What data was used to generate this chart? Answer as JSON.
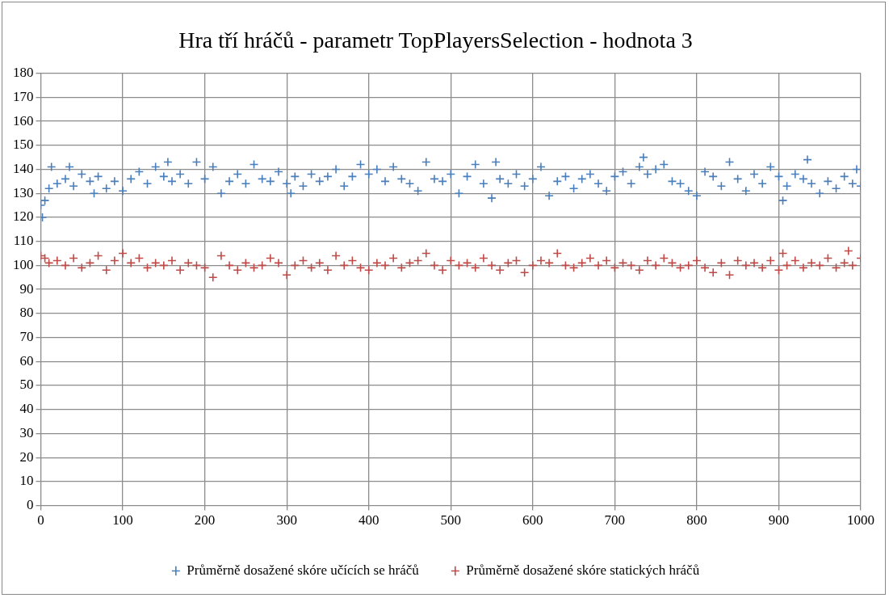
{
  "chart_data": {
    "type": "scatter",
    "title": "Hra tří hráčů - parametr TopPlayersSelection - hodnota 3",
    "xlim": [
      0,
      1000
    ],
    "xticks": [
      0,
      100,
      200,
      300,
      400,
      500,
      600,
      700,
      800,
      900,
      1000
    ],
    "ylim": [
      0,
      180
    ],
    "yticks": [
      0,
      10,
      20,
      30,
      40,
      50,
      60,
      70,
      80,
      90,
      100,
      110,
      120,
      130,
      140,
      150,
      160,
      170,
      180
    ],
    "grid": true,
    "legend": "bottom",
    "marker": "cross",
    "series": [
      {
        "name": "Průměrně dosažené skóre učících se hráčů",
        "color": "#4a7ebb",
        "x": [
          0,
          2,
          5,
          10,
          13,
          20,
          30,
          35,
          40,
          50,
          60,
          65,
          70,
          80,
          90,
          100,
          110,
          120,
          130,
          140,
          150,
          155,
          160,
          170,
          180,
          190,
          200,
          210,
          220,
          230,
          240,
          250,
          260,
          270,
          280,
          290,
          300,
          305,
          310,
          320,
          330,
          340,
          350,
          360,
          370,
          380,
          390,
          400,
          410,
          420,
          430,
          440,
          450,
          460,
          470,
          480,
          490,
          500,
          510,
          520,
          530,
          540,
          550,
          555,
          560,
          570,
          580,
          590,
          600,
          610,
          620,
          630,
          640,
          650,
          660,
          670,
          680,
          690,
          700,
          710,
          720,
          730,
          735,
          740,
          750,
          760,
          770,
          780,
          790,
          800,
          810,
          820,
          830,
          840,
          850,
          860,
          870,
          880,
          890,
          900,
          905,
          910,
          920,
          930,
          935,
          940,
          950,
          960,
          970,
          980,
          990,
          995,
          1000
        ],
        "values": [
          125,
          120,
          127,
          132,
          141,
          134,
          136,
          141,
          133,
          138,
          135,
          130,
          137,
          132,
          135,
          131,
          136,
          139,
          134,
          141,
          137,
          143,
          135,
          138,
          134,
          143,
          136,
          141,
          130,
          135,
          138,
          134,
          142,
          136,
          135,
          139,
          134,
          130,
          137,
          133,
          138,
          135,
          137,
          140,
          133,
          137,
          142,
          138,
          140,
          135,
          141,
          136,
          134,
          131,
          143,
          136,
          135,
          138,
          130,
          137,
          142,
          134,
          128,
          143,
          136,
          134,
          138,
          133,
          136,
          141,
          129,
          135,
          137,
          132,
          136,
          138,
          134,
          131,
          137,
          139,
          134,
          141,
          145,
          138,
          140,
          142,
          135,
          134,
          131,
          129,
          139,
          137,
          133,
          143,
          136,
          131,
          138,
          134,
          141,
          137,
          127,
          133,
          138,
          136,
          144,
          134,
          130,
          135,
          132,
          137,
          134,
          140,
          133
        ]
      },
      {
        "name": "Průměrně dosažené skóre statických hráčů",
        "color": "#be4b48",
        "x": [
          0,
          5,
          10,
          20,
          30,
          40,
          50,
          60,
          70,
          80,
          90,
          100,
          110,
          120,
          130,
          140,
          150,
          160,
          170,
          180,
          190,
          200,
          210,
          220,
          230,
          240,
          250,
          260,
          270,
          280,
          290,
          300,
          310,
          320,
          330,
          340,
          350,
          360,
          370,
          380,
          390,
          400,
          410,
          420,
          430,
          440,
          450,
          460,
          470,
          480,
          490,
          500,
          510,
          520,
          530,
          540,
          550,
          560,
          570,
          580,
          590,
          600,
          610,
          620,
          630,
          640,
          650,
          660,
          670,
          680,
          690,
          700,
          710,
          720,
          730,
          740,
          750,
          760,
          770,
          780,
          790,
          800,
          810,
          820,
          830,
          840,
          850,
          860,
          870,
          880,
          890,
          900,
          905,
          910,
          920,
          930,
          940,
          950,
          960,
          970,
          980,
          985,
          990,
          1000
        ],
        "values": [
          104,
          103,
          101,
          102,
          100,
          103,
          99,
          101,
          104,
          98,
          102,
          105,
          101,
          103,
          99,
          101,
          100,
          102,
          98,
          101,
          100,
          99,
          95,
          104,
          100,
          98,
          101,
          99,
          100,
          103,
          101,
          96,
          100,
          102,
          99,
          101,
          98,
          104,
          100,
          102,
          99,
          98,
          101,
          100,
          103,
          99,
          101,
          102,
          105,
          100,
          98,
          102,
          100,
          101,
          99,
          103,
          100,
          98,
          101,
          102,
          97,
          100,
          102,
          101,
          105,
          100,
          99,
          101,
          103,
          100,
          102,
          99,
          101,
          100,
          98,
          102,
          100,
          103,
          101,
          99,
          100,
          102,
          99,
          97,
          101,
          96,
          102,
          100,
          101,
          99,
          102,
          98,
          105,
          100,
          102,
          99,
          101,
          100,
          103,
          99,
          101,
          106,
          100,
          103
        ]
      }
    ]
  }
}
